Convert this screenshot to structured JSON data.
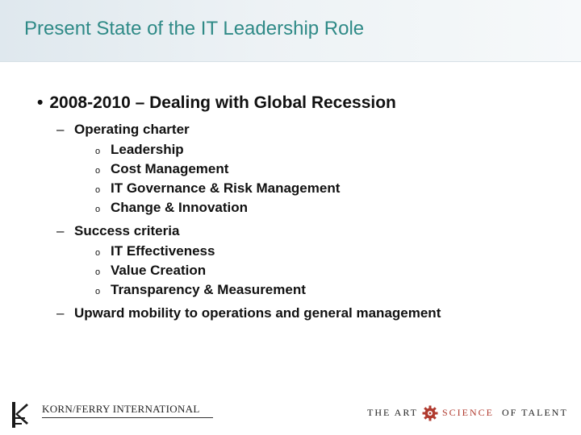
{
  "slide": {
    "title": "Present State of the IT Leadership Role",
    "bullet": {
      "marker": "•",
      "text": "2008-2010 – Dealing with Global Recession"
    },
    "sub_items": [
      {
        "marker": "–",
        "text": "Operating charter"
      },
      {
        "marker": "o",
        "text": "Leadership"
      },
      {
        "marker": "o",
        "text": "Cost Management"
      },
      {
        "marker": "o",
        "text": "IT Governance & Risk Management"
      },
      {
        "marker": "o",
        "text": "Change & Innovation"
      },
      {
        "marker": "–",
        "text": "Success criteria"
      },
      {
        "marker": "o",
        "text": "IT Effectiveness"
      },
      {
        "marker": "o",
        "text": "Value Creation"
      },
      {
        "marker": "o",
        "text": "Transparency & Measurement"
      },
      {
        "marker": "–",
        "text": "Upward mobility to operations and general management"
      }
    ]
  },
  "footer": {
    "company": "KORN/FERRY INTERNATIONAL",
    "tagline": {
      "part1": "THE ART",
      "part2": "SCIENCE",
      "part3": "OF TALENT"
    }
  },
  "colors": {
    "title": "#2f8a87",
    "accent": "#b03a2e"
  }
}
